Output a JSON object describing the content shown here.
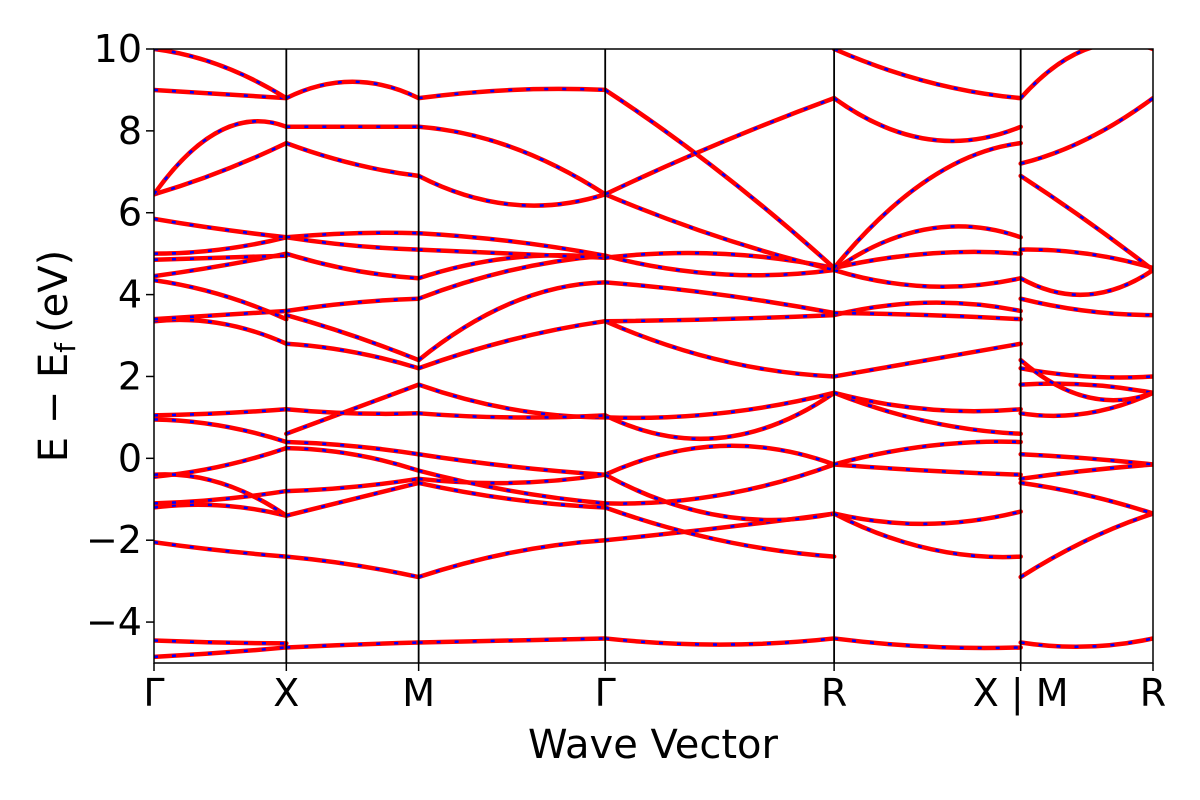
{
  "chart_data": {
    "type": "line",
    "xlabel": "Wave Vector",
    "ylabel": "E − E",
    "ylabel_subscript": "f",
    "ylabel_unit": "(eV)",
    "ylim": [
      -5,
      10
    ],
    "yticks": [
      -4,
      -2,
      0,
      2,
      4,
      6,
      8,
      10
    ],
    "ytick_labels": [
      "−4",
      "−2",
      "0",
      "2",
      "4",
      "6",
      "8",
      "10"
    ],
    "xlim": [
      0,
      7.55
    ],
    "kpoints": [
      {
        "label": "Γ",
        "x": 0.0
      },
      {
        "label": "X",
        "x": 1.0
      },
      {
        "label": "M",
        "x": 2.0
      },
      {
        "label": "Γ",
        "x": 3.41
      },
      {
        "label": "R",
        "x": 5.14
      },
      {
        "label": "X | M",
        "x": 6.55
      },
      {
        "label": "R",
        "x": 7.55
      }
    ],
    "grid": false,
    "colors": {
      "band_primary": "#ff0000",
      "band_overlay": "#0000ff"
    },
    "series": [
      {
        "segment": "Γ-X",
        "energies": [
          -4.85,
          -4.75,
          -4.62
        ]
      },
      {
        "segment": "Γ-X",
        "energies": [
          -4.45,
          -4.5,
          -4.52
        ]
      },
      {
        "segment": "Γ-X",
        "energies": [
          -2.05,
          -2.25,
          -2.4
        ]
      },
      {
        "segment": "Γ-X",
        "energies": [
          -1.2,
          -1.15,
          -1.4
        ]
      },
      {
        "segment": "Γ-X",
        "energies": [
          -1.1,
          -1.0,
          -0.8
        ]
      },
      {
        "segment": "Γ-X",
        "energies": [
          -0.45,
          -0.2,
          0.25
        ]
      },
      {
        "segment": "Γ-X",
        "energies": [
          -0.4,
          -0.6,
          -1.4
        ]
      },
      {
        "segment": "Γ-X",
        "energies": [
          0.95,
          0.8,
          0.4
        ]
      },
      {
        "segment": "Γ-X",
        "energies": [
          1.05,
          1.1,
          1.2
        ]
      },
      {
        "segment": "Γ-X",
        "energies": [
          3.35,
          3.3,
          2.8
        ]
      },
      {
        "segment": "Γ-X",
        "energies": [
          3.4,
          3.5,
          3.6
        ]
      },
      {
        "segment": "Γ-X",
        "energies": [
          4.35,
          4.0,
          3.4
        ]
      },
      {
        "segment": "Γ-X",
        "energies": [
          4.45,
          4.7,
          5.0
        ]
      },
      {
        "segment": "Γ-X",
        "energies": [
          4.85,
          4.9,
          4.95
        ]
      },
      {
        "segment": "Γ-X",
        "energies": [
          5.0,
          5.1,
          5.4
        ]
      },
      {
        "segment": "Γ-X",
        "energies": [
          5.85,
          5.6,
          5.4
        ]
      },
      {
        "segment": "Γ-X",
        "energies": [
          6.45,
          7.0,
          7.7
        ]
      },
      {
        "segment": "Γ-X",
        "energies": [
          6.45,
          8.0,
          8.1
        ]
      },
      {
        "segment": "Γ-X",
        "energies": [
          9.0,
          8.9,
          8.8
        ]
      },
      {
        "segment": "Γ-X",
        "energies": [
          10.0,
          9.6,
          8.8
        ]
      },
      {
        "segment": "X-M",
        "energies": [
          -4.62,
          -4.55,
          -4.5
        ]
      },
      {
        "segment": "X-M",
        "energies": [
          -2.4,
          -2.6,
          -2.9
        ]
      },
      {
        "segment": "X-M",
        "energies": [
          -1.4,
          -1.0,
          -0.6
        ]
      },
      {
        "segment": "X-M",
        "energies": [
          -0.8,
          -0.7,
          -0.5
        ]
      },
      {
        "segment": "X-M",
        "energies": [
          0.25,
          0.1,
          -0.3
        ]
      },
      {
        "segment": "X-M",
        "energies": [
          0.4,
          0.3,
          0.1
        ]
      },
      {
        "segment": "X-M",
        "energies": [
          0.6,
          1.2,
          1.8
        ]
      },
      {
        "segment": "X-M",
        "energies": [
          1.2,
          1.1,
          1.1
        ]
      },
      {
        "segment": "X-M",
        "energies": [
          2.8,
          2.6,
          2.2
        ]
      },
      {
        "segment": "X-M",
        "energies": [
          3.5,
          3.0,
          2.4
        ]
      },
      {
        "segment": "X-M",
        "energies": [
          3.6,
          3.8,
          3.9
        ]
      },
      {
        "segment": "X-M",
        "energies": [
          5.0,
          4.6,
          4.4
        ]
      },
      {
        "segment": "X-M",
        "energies": [
          5.4,
          5.2,
          5.1
        ]
      },
      {
        "segment": "X-M",
        "energies": [
          5.4,
          5.5,
          5.5
        ]
      },
      {
        "segment": "X-M",
        "energies": [
          7.7,
          7.2,
          6.9
        ]
      },
      {
        "segment": "X-M",
        "energies": [
          8.1,
          8.1,
          8.1
        ]
      },
      {
        "segment": "X-M",
        "energies": [
          8.8,
          9.2,
          8.8
        ]
      },
      {
        "segment": "M-Γ",
        "energies": [
          -4.5,
          -4.45,
          -4.4
        ]
      },
      {
        "segment": "M-Γ",
        "energies": [
          -2.9,
          -2.3,
          -2.0
        ]
      },
      {
        "segment": "M-Γ",
        "energies": [
          -0.6,
          -1.0,
          -1.2
        ]
      },
      {
        "segment": "M-Γ",
        "energies": [
          -0.5,
          -0.6,
          -0.4
        ]
      },
      {
        "segment": "M-Γ",
        "energies": [
          -0.3,
          -0.8,
          -1.1
        ]
      },
      {
        "segment": "M-Γ",
        "energies": [
          0.1,
          -0.2,
          -0.4
        ]
      },
      {
        "segment": "M-Γ",
        "energies": [
          1.8,
          1.2,
          1.0
        ]
      },
      {
        "segment": "M-Γ",
        "energies": [
          1.1,
          1.0,
          1.05
        ]
      },
      {
        "segment": "M-Γ",
        "energies": [
          2.2,
          2.9,
          3.35
        ]
      },
      {
        "segment": "M-Γ",
        "energies": [
          2.4,
          3.8,
          4.3
        ]
      },
      {
        "segment": "M-Γ",
        "energies": [
          3.9,
          4.6,
          4.95
        ]
      },
      {
        "segment": "M-Γ",
        "energies": [
          4.4,
          4.9,
          4.9
        ]
      },
      {
        "segment": "M-Γ",
        "energies": [
          5.1,
          5.0,
          4.9
        ]
      },
      {
        "segment": "M-Γ",
        "energies": [
          5.5,
          5.3,
          4.95
        ]
      },
      {
        "segment": "M-Γ",
        "energies": [
          6.9,
          6.2,
          6.45
        ]
      },
      {
        "segment": "M-Γ",
        "energies": [
          8.1,
          7.6,
          6.45
        ]
      },
      {
        "segment": "M-Γ",
        "energies": [
          8.8,
          9.0,
          9.0
        ]
      },
      {
        "segment": "Γ-R",
        "energies": [
          -4.4,
          -4.55,
          -4.4
        ]
      },
      {
        "segment": "Γ-R",
        "energies": [
          -2.0,
          -1.7,
          -1.35
        ]
      },
      {
        "segment": "Γ-R",
        "energies": [
          -1.2,
          -2.0,
          -2.4
        ]
      },
      {
        "segment": "Γ-R",
        "energies": [
          -1.1,
          -0.9,
          -0.15
        ]
      },
      {
        "segment": "Γ-R",
        "energies": [
          -0.4,
          0.3,
          -0.15
        ]
      },
      {
        "segment": "Γ-R",
        "energies": [
          -0.4,
          -1.4,
          -1.35
        ]
      },
      {
        "segment": "Γ-R",
        "energies": [
          1.05,
          0.5,
          1.6
        ]
      },
      {
        "segment": "Γ-R",
        "energies": [
          1.0,
          1.1,
          1.6
        ]
      },
      {
        "segment": "Γ-R",
        "energies": [
          3.35,
          2.4,
          2.0
        ]
      },
      {
        "segment": "Γ-R",
        "energies": [
          3.35,
          3.4,
          3.5
        ]
      },
      {
        "segment": "Γ-R",
        "energies": [
          4.3,
          4.0,
          3.55
        ]
      },
      {
        "segment": "Γ-R",
        "energies": [
          4.95,
          4.5,
          4.6
        ]
      },
      {
        "segment": "Γ-R",
        "energies": [
          4.9,
          5.0,
          4.65
        ]
      },
      {
        "segment": "Γ-R",
        "energies": [
          6.45,
          5.4,
          4.6
        ]
      },
      {
        "segment": "Γ-R",
        "energies": [
          6.45,
          7.7,
          8.8
        ]
      },
      {
        "segment": "Γ-R",
        "energies": [
          9.0,
          7.0,
          4.65
        ]
      },
      {
        "segment": "R-X",
        "energies": [
          -4.4,
          -4.6,
          -4.62
        ]
      },
      {
        "segment": "R-X",
        "energies": [
          -1.35,
          -1.6,
          -1.3
        ]
      },
      {
        "segment": "R-X",
        "energies": [
          -1.35,
          -2.2,
          -2.4
        ]
      },
      {
        "segment": "R-X",
        "energies": [
          -0.15,
          -0.3,
          -0.4
        ]
      },
      {
        "segment": "R-X",
        "energies": [
          -0.15,
          0.3,
          0.4
        ]
      },
      {
        "segment": "R-X",
        "energies": [
          1.6,
          0.9,
          0.6
        ]
      },
      {
        "segment": "R-X",
        "energies": [
          1.6,
          1.2,
          1.2
        ]
      },
      {
        "segment": "R-X",
        "energies": [
          2.0,
          2.4,
          2.8
        ]
      },
      {
        "segment": "R-X",
        "energies": [
          3.5,
          3.8,
          3.6
        ]
      },
      {
        "segment": "R-X",
        "energies": [
          3.55,
          3.5,
          3.4
        ]
      },
      {
        "segment": "R-X",
        "energies": [
          4.6,
          5.6,
          5.4
        ]
      },
      {
        "segment": "R-X",
        "energies": [
          4.65,
          5.0,
          5.0
        ]
      },
      {
        "segment": "R-X",
        "energies": [
          4.6,
          4.2,
          4.4
        ]
      },
      {
        "segment": "R-X",
        "energies": [
          8.8,
          7.8,
          8.1
        ]
      },
      {
        "segment": "R-X",
        "energies": [
          4.65,
          6.8,
          7.7
        ]
      },
      {
        "segment": "R-X",
        "energies": [
          10.0,
          9.2,
          8.8
        ]
      },
      {
        "segment": "M-R",
        "energies": [
          -4.5,
          -4.6,
          -4.4
        ]
      },
      {
        "segment": "M-R",
        "energies": [
          -2.9,
          -2.0,
          -1.35
        ]
      },
      {
        "segment": "M-R",
        "energies": [
          -0.6,
          -0.9,
          -1.35
        ]
      },
      {
        "segment": "M-R",
        "energies": [
          -0.5,
          -0.3,
          -0.15
        ]
      },
      {
        "segment": "M-R",
        "energies": [
          0.1,
          0.0,
          -0.15
        ]
      },
      {
        "segment": "M-R",
        "energies": [
          1.8,
          1.8,
          1.6
        ]
      },
      {
        "segment": "M-R",
        "energies": [
          1.1,
          1.1,
          1.6
        ]
      },
      {
        "segment": "M-R",
        "energies": [
          2.2,
          2.0,
          2.0
        ]
      },
      {
        "segment": "M-R",
        "energies": [
          2.4,
          1.5,
          1.6
        ]
      },
      {
        "segment": "M-R",
        "energies": [
          3.9,
          3.6,
          3.5
        ]
      },
      {
        "segment": "M-R",
        "energies": [
          4.4,
          4.0,
          4.6
        ]
      },
      {
        "segment": "M-R",
        "energies": [
          5.1,
          5.0,
          4.65
        ]
      },
      {
        "segment": "M-R",
        "energies": [
          6.9,
          5.8,
          4.6
        ]
      },
      {
        "segment": "M-R",
        "energies": [
          7.2,
          7.8,
          8.8
        ]
      },
      {
        "segment": "M-R",
        "energies": [
          8.8,
          10.0,
          10.0
        ]
      }
    ]
  }
}
